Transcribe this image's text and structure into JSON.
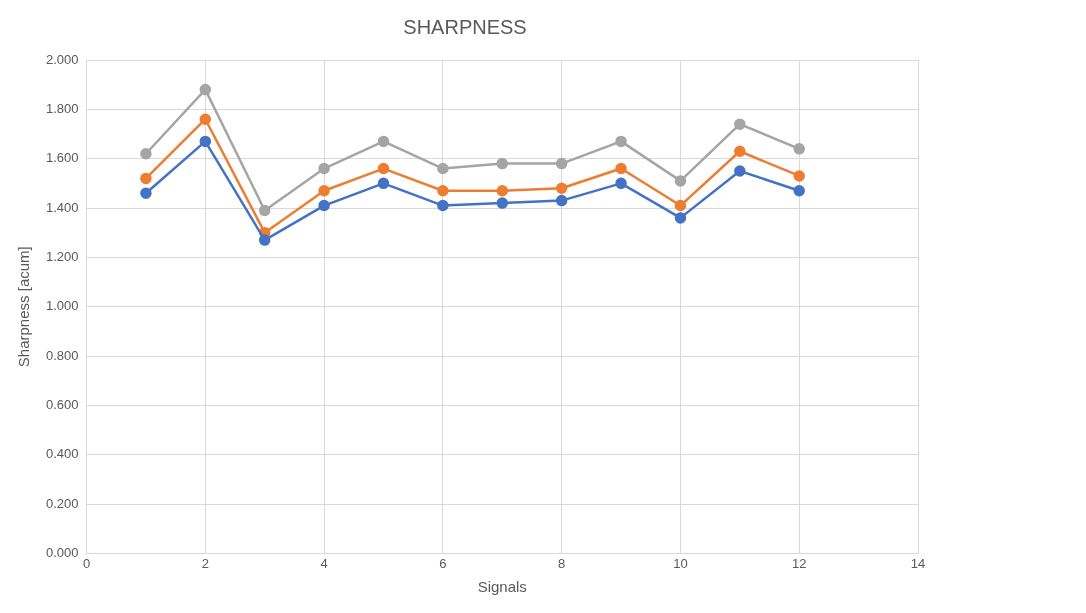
{
  "chart_data": {
    "type": "line",
    "title": "SHARPNESS",
    "xlabel": "Signals",
    "ylabel": "Sharpness [acum]",
    "x": [
      1,
      2,
      3,
      4,
      5,
      6,
      7,
      8,
      9,
      10,
      11,
      12
    ],
    "series": [
      {
        "color": "#4472c4",
        "values": [
          1.46,
          1.67,
          1.27,
          1.41,
          1.5,
          1.41,
          1.42,
          1.43,
          1.5,
          1.36,
          1.55,
          1.47
        ]
      },
      {
        "color": "#ed7d31",
        "values": [
          1.52,
          1.76,
          1.3,
          1.47,
          1.56,
          1.47,
          1.47,
          1.48,
          1.56,
          1.41,
          1.63,
          1.53
        ]
      },
      {
        "color": "#a5a5a5",
        "values": [
          1.62,
          1.88,
          1.39,
          1.56,
          1.67,
          1.56,
          1.58,
          1.58,
          1.67,
          1.51,
          1.74,
          1.64
        ]
      }
    ],
    "xlim": [
      0,
      14
    ],
    "xticks": [
      0,
      2,
      4,
      6,
      8,
      10,
      12,
      14
    ],
    "ylim": [
      0,
      2
    ],
    "yticks": [
      {
        "value": 0,
        "label": "0.000"
      },
      {
        "value": 0.2,
        "label": "0.200"
      },
      {
        "value": 0.4,
        "label": "0.400"
      },
      {
        "value": 0.6,
        "label": "0.600"
      },
      {
        "value": 0.8,
        "label": "0.800"
      },
      {
        "value": 1,
        "label": "1.000"
      },
      {
        "value": 1.2,
        "label": "1.200"
      },
      {
        "value": 1.4,
        "label": "1.400"
      },
      {
        "value": 1.6,
        "label": "1.600"
      },
      {
        "value": 1.8,
        "label": "1.800"
      },
      {
        "value": 2,
        "label": "2.000"
      }
    ],
    "grid": true,
    "marker": "circle",
    "line_style": "solid"
  }
}
